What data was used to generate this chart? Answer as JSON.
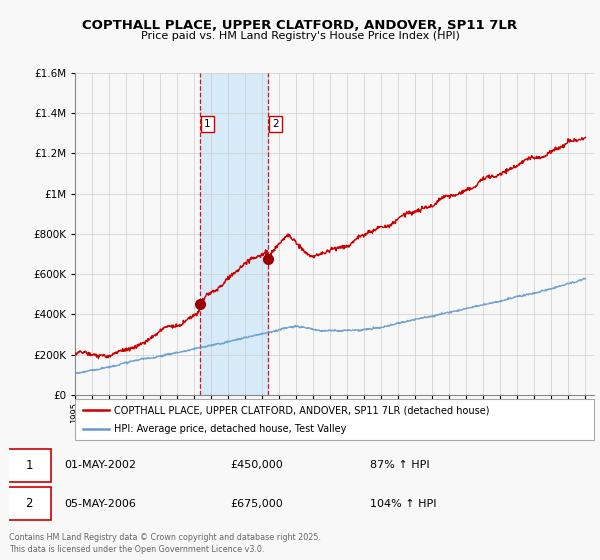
{
  "title": "COPTHALL PLACE, UPPER CLATFORD, ANDOVER, SP11 7LR",
  "subtitle": "Price paid vs. HM Land Registry's House Price Index (HPI)",
  "legend_line1": "COPTHALL PLACE, UPPER CLATFORD, ANDOVER, SP11 7LR (detached house)",
  "legend_line2": "HPI: Average price, detached house, Test Valley",
  "sale1_date": "01-MAY-2002",
  "sale1_price": "£450,000",
  "sale1_hpi": "87% ↑ HPI",
  "sale1_year": 2002.33,
  "sale1_value": 450000,
  "sale2_date": "05-MAY-2006",
  "sale2_price": "£675,000",
  "sale2_hpi": "104% ↑ HPI",
  "sale2_year": 2006.33,
  "sale2_value": 675000,
  "footer": "Contains HM Land Registry data © Crown copyright and database right 2025.\nThis data is licensed under the Open Government Licence v3.0.",
  "red_color": "#cc0000",
  "blue_color": "#6699cc",
  "shade_color": "#d0e8f7",
  "background_color": "#f8f8f8",
  "grid_color": "#cccccc",
  "ylim": [
    0,
    1600000
  ],
  "xlim_start": 1995,
  "xlim_end": 2025.5
}
